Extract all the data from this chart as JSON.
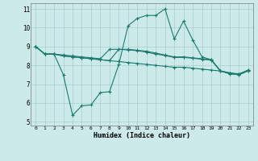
{
  "xlabel": "Humidex (Indice chaleur)",
  "background_color": "#cceaea",
  "grid_color": "#aacccc",
  "line_color": "#1a7a6e",
  "xlim": [
    -0.5,
    23.5
  ],
  "ylim": [
    4.8,
    11.3
  ],
  "xticks": [
    0,
    1,
    2,
    3,
    4,
    5,
    6,
    7,
    8,
    9,
    10,
    11,
    12,
    13,
    14,
    15,
    16,
    17,
    18,
    19,
    20,
    21,
    22,
    23
  ],
  "yticks": [
    5,
    6,
    7,
    8,
    9,
    10,
    11
  ],
  "line1_y": [
    9.0,
    8.6,
    8.6,
    7.5,
    5.35,
    5.85,
    5.9,
    6.55,
    6.6,
    8.05,
    10.1,
    10.5,
    10.65,
    10.65,
    11.0,
    9.4,
    10.35,
    9.35,
    8.45,
    8.3,
    7.7,
    7.55,
    7.5,
    7.75
  ],
  "line2_y": [
    9.0,
    8.6,
    8.6,
    8.55,
    8.5,
    8.45,
    8.4,
    8.35,
    8.85,
    8.85,
    8.85,
    8.8,
    8.75,
    8.65,
    8.55,
    8.45,
    8.45,
    8.4,
    8.35,
    8.3,
    7.7,
    7.6,
    7.55,
    7.75
  ],
  "line3_y": [
    9.0,
    8.6,
    8.6,
    8.5,
    8.45,
    8.4,
    8.35,
    8.3,
    8.25,
    8.2,
    8.15,
    8.1,
    8.05,
    8.0,
    7.95,
    7.9,
    7.9,
    7.85,
    7.8,
    7.75,
    7.7,
    7.6,
    7.5,
    7.7
  ],
  "line4_y": [
    9.0,
    8.6,
    8.6,
    8.5,
    8.45,
    8.4,
    8.35,
    8.3,
    8.25,
    8.85,
    8.82,
    8.78,
    8.7,
    8.6,
    8.52,
    8.42,
    8.42,
    8.38,
    8.32,
    8.28,
    7.7,
    7.56,
    7.52,
    7.72
  ]
}
